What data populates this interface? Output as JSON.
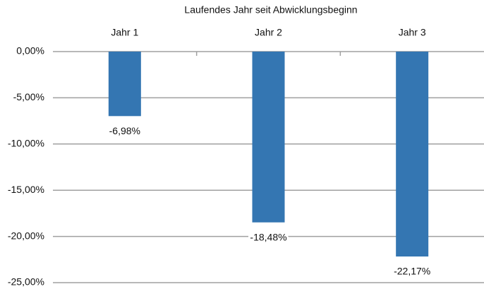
{
  "chart_data": {
    "type": "bar",
    "x_label": "Laufendes Jahr seit Abwicklungsbeginn",
    "categories": [
      "Jahr 1",
      "Jahr 2",
      "Jahr 3"
    ],
    "values": [
      -6.98,
      -18.48,
      -22.17
    ],
    "value_labels": [
      "-6,98%",
      "-18,48%",
      "-22,17%"
    ],
    "color": "#3476b2",
    "ylim": [
      -25,
      0
    ],
    "yticks": [
      {
        "value": 0,
        "label": "0,00%"
      },
      {
        "value": -5,
        "label": "-5,00%"
      },
      {
        "value": -10,
        "label": "-10,00%"
      },
      {
        "value": -15,
        "label": "-15,00%"
      },
      {
        "value": -20,
        "label": "-20,00%"
      },
      {
        "value": -25,
        "label": "-25,00%"
      }
    ],
    "grid": true
  }
}
